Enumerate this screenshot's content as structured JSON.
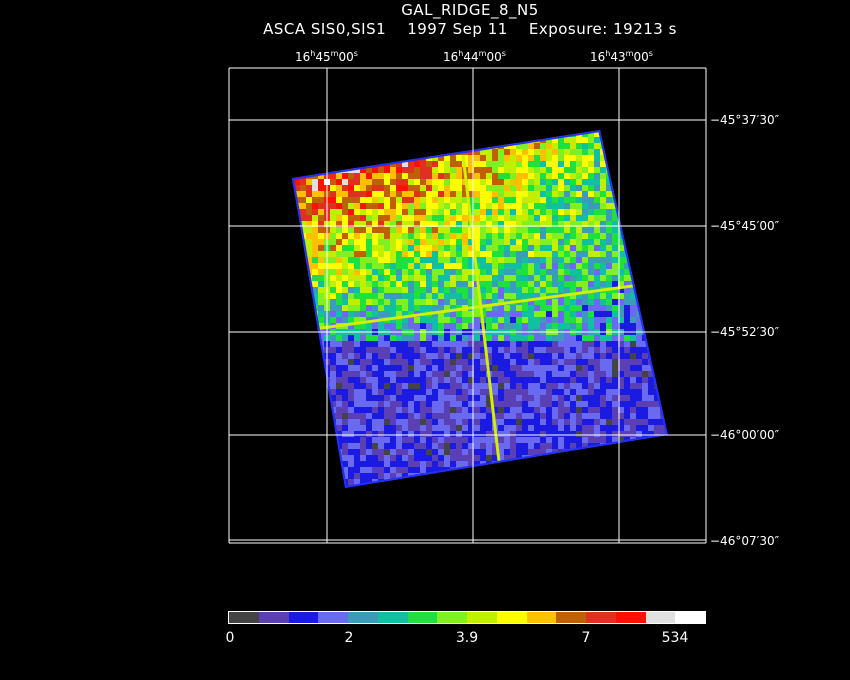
{
  "title": "GAL_RIDGE_8_N5",
  "subtitle": "ASCA SIS0,SIS1    1997 Sep 11    Exposure: 19213 s",
  "ra_labels": [
    {
      "h": "16",
      "m": "45",
      "s": "00"
    },
    {
      "h": "16",
      "m": "44",
      "s": "00"
    },
    {
      "h": "16",
      "m": "43",
      "s": "00"
    }
  ],
  "dec_labels": [
    "−45°37′30″",
    "−45°45′00″",
    "−45°52′30″",
    "−46°00′00″",
    "−46°07′30″"
  ],
  "colorbar": {
    "colors": [
      "#444444",
      "#5a3fb5",
      "#1a1ae0",
      "#6a6af0",
      "#3a9cb8",
      "#10c0a0",
      "#20e040",
      "#80f020",
      "#c0f000",
      "#ffff00",
      "#ffc000",
      "#c06000",
      "#e03020",
      "#ff1000",
      "#e0e0e0",
      "#ffffff"
    ],
    "tick_labels": [
      "0",
      "2",
      "3.9",
      "7",
      "534"
    ]
  }
}
